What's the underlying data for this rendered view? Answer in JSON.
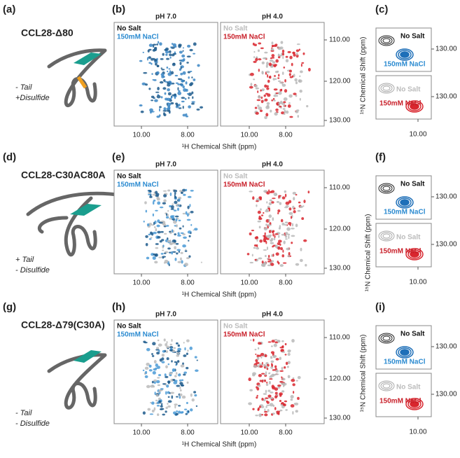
{
  "rows": [
    {
      "panel_labels": [
        "(a)",
        "(b)",
        "(c)"
      ],
      "construct": "CCL28-Δ80",
      "annotations": [
        "- Tail",
        "+Disulfide"
      ],
      "spectra": [
        {
          "title": "pH 7.0",
          "legend": [
            "No Salt",
            "150mM NaCl"
          ],
          "x_ticks": [
            "10.00",
            "8.00"
          ]
        },
        {
          "title": "pH 4.0",
          "legend": [
            "No Salt",
            "150mM NaCl"
          ],
          "x_ticks": [
            "10.00",
            "8.00"
          ]
        }
      ],
      "y_ticks": [
        "110.00",
        "120.00",
        "130.00"
      ],
      "insets": [
        {
          "labels": [
            "No Salt",
            "150mM NaCl"
          ],
          "y_tick": "130.00"
        },
        {
          "labels": [
            "No Salt",
            "150mM NaCl"
          ],
          "y_tick": "130.00"
        }
      ],
      "inset_x_tick": "10.00"
    },
    {
      "panel_labels": [
        "(d)",
        "(e)",
        "(f)"
      ],
      "construct": "CCL28-C30AC80A",
      "annotations": [
        "+ Tail",
        "- Disulfide"
      ],
      "spectra": [
        {
          "title": "pH 7.0",
          "legend": [
            "No Salt",
            "150mM NaCl"
          ],
          "x_ticks": [
            "10.00",
            "8.00"
          ]
        },
        {
          "title": "pH 4.0",
          "legend": [
            "No Salt",
            "150mM NaCl"
          ],
          "x_ticks": [
            "10.00",
            "8.00"
          ]
        }
      ],
      "y_ticks": [
        "110.00",
        "120.00",
        "130.00"
      ],
      "insets": [
        {
          "labels": [
            "No Salt",
            "150mM NaCl"
          ],
          "y_tick": "130.00"
        },
        {
          "labels": [
            "No Salt",
            "150mM NaCl"
          ],
          "y_tick": "130.00"
        }
      ],
      "inset_x_tick": "10.00"
    },
    {
      "panel_labels": [
        "(g)",
        "(h)",
        "(i)"
      ],
      "construct": "CCL28-Δ79(C30A)",
      "annotations": [
        "- Tail",
        "- Disulfide"
      ],
      "spectra": [
        {
          "title": "pH 7.0",
          "legend": [
            "No Salt",
            "150mM NaCl"
          ],
          "x_ticks": [
            "10.00",
            "8.00"
          ]
        },
        {
          "title": "pH 4.0",
          "legend": [
            "No Salt",
            "150mM NaCl"
          ],
          "x_ticks": [
            "10.00",
            "8.00"
          ]
        }
      ],
      "y_ticks": [
        "110.00",
        "120.00",
        "130.00"
      ],
      "insets": [
        {
          "labels": [
            "No Salt",
            "150mM NaCl"
          ],
          "y_tick": "130.00"
        },
        {
          "labels": [
            "No Salt",
            "150mM NaCl"
          ],
          "y_tick": "130.00"
        }
      ],
      "inset_x_tick": "10.00"
    }
  ],
  "x_axis_label": "¹H Chemical Shift (ppm)",
  "y_axis_label": "¹⁵N Chemical Shift (ppm)"
}
